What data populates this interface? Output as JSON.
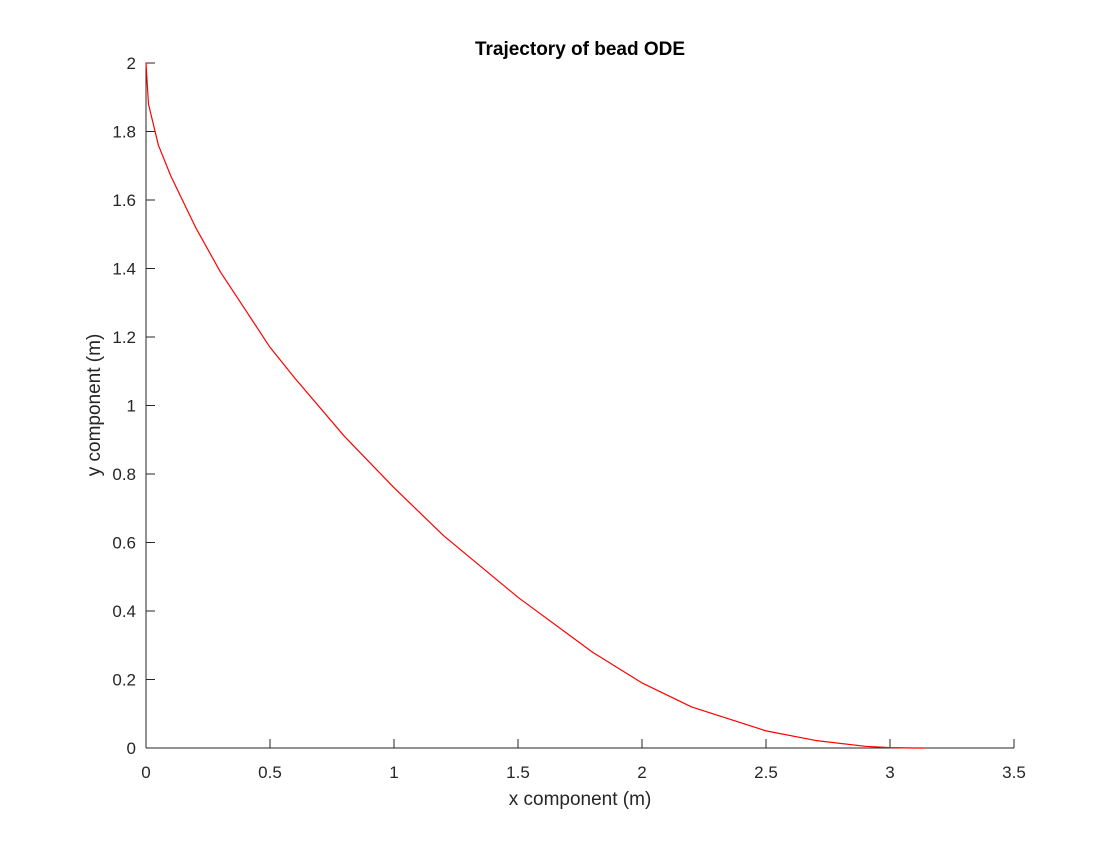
{
  "chart_data": {
    "type": "line",
    "title": "Trajectory of bead ODE",
    "xlabel": "x component (m)",
    "ylabel": "y component (m)",
    "xlim": [
      0,
      3.5
    ],
    "ylim": [
      0,
      2
    ],
    "xticks": [
      0,
      0.5,
      1,
      1.5,
      2,
      2.5,
      3,
      3.5
    ],
    "xtick_labels": [
      "0",
      "0.5",
      "1",
      "1.5",
      "2",
      "2.5",
      "3",
      "3.5"
    ],
    "yticks": [
      0,
      0.2,
      0.4,
      0.6,
      0.8,
      1,
      1.2,
      1.4,
      1.6,
      1.8,
      2
    ],
    "ytick_labels": [
      "0",
      "0.2",
      "0.4",
      "0.6",
      "0.8",
      "1",
      "1.2",
      "1.4",
      "1.6",
      "1.8",
      "2"
    ],
    "grid": false,
    "series": [
      {
        "color": "#ff0000",
        "x": [
          0,
          0.01,
          0.05,
          0.1,
          0.2,
          0.3,
          0.4,
          0.5,
          0.6,
          0.8,
          1.0,
          1.2,
          1.5,
          1.8,
          2.0,
          2.2,
          2.5,
          2.7,
          2.9,
          3.0,
          3.1,
          3.14
        ],
        "y": [
          2.0,
          1.88,
          1.76,
          1.67,
          1.52,
          1.39,
          1.28,
          1.17,
          1.08,
          0.91,
          0.76,
          0.62,
          0.44,
          0.28,
          0.19,
          0.12,
          0.05,
          0.022,
          0.005,
          0.001,
          0.0,
          0.0
        ]
      }
    ]
  }
}
